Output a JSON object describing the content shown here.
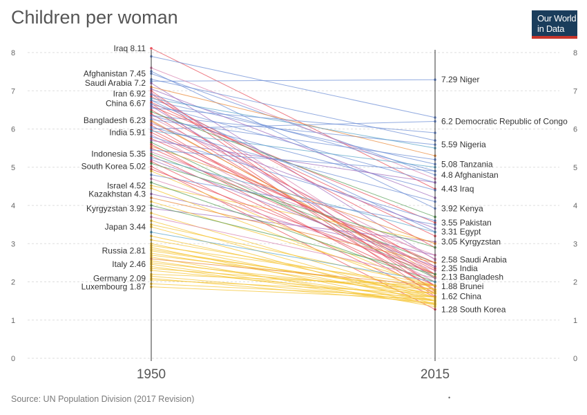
{
  "title": "Children per woman",
  "logo": {
    "line1": "Our World",
    "line2": "in Data"
  },
  "source": "Source: UN Population Division (2017 Revision)",
  "footer_dot": "•",
  "colors": {
    "axis": "#333333",
    "grid": "#dddddd",
    "text": "#333333",
    "logo_bg": "#1a3d5c",
    "logo_bar": "#c8352b",
    "palette": [
      "#6d8fd6",
      "#e8505b",
      "#f6c431",
      "#a16fbf",
      "#5aa05a",
      "#e98a3a",
      "#5aa6c9",
      "#d883b0",
      "#9a7b56",
      "#8fbf6a"
    ]
  },
  "chart_data": {
    "type": "line",
    "subtype": "slope",
    "title": "Children per woman",
    "x": [
      "1950",
      "2015"
    ],
    "ylim": [
      0,
      8
    ],
    "yticks": [
      0,
      1,
      2,
      3,
      4,
      5,
      6,
      7,
      8
    ],
    "grid": true,
    "labeled_left": [
      {
        "name": "Iraq",
        "value": 8.11
      },
      {
        "name": "Afghanistan",
        "value": 7.45
      },
      {
        "name": "Saudi Arabia",
        "value": 7.2
      },
      {
        "name": "Iran",
        "value": 6.92
      },
      {
        "name": "China",
        "value": 6.67
      },
      {
        "name": "Bangladesh",
        "value": 6.23
      },
      {
        "name": "India",
        "value": 5.91
      },
      {
        "name": "Indonesia",
        "value": 5.35
      },
      {
        "name": "South Korea",
        "value": 5.02
      },
      {
        "name": "Israel",
        "value": 4.52
      },
      {
        "name": "Kazakhstan",
        "value": 4.3
      },
      {
        "name": "Kyrgyzstan",
        "value": 3.92
      },
      {
        "name": "Japan",
        "value": 3.44
      },
      {
        "name": "Russia",
        "value": 2.81
      },
      {
        "name": "Italy",
        "value": 2.46
      },
      {
        "name": "Germany",
        "value": 2.09
      },
      {
        "name": "Luxembourg",
        "value": 1.87
      }
    ],
    "labeled_right": [
      {
        "name": "Niger",
        "value": 7.29
      },
      {
        "name": "Democratic Republic of Congo",
        "value": 6.2
      },
      {
        "name": "Nigeria",
        "value": 5.59
      },
      {
        "name": "Tanzania",
        "value": 5.08
      },
      {
        "name": "Afghanistan",
        "value": 4.8
      },
      {
        "name": "Iraq",
        "value": 4.43
      },
      {
        "name": "Kenya",
        "value": 3.92
      },
      {
        "name": "Pakistan",
        "value": 3.55
      },
      {
        "name": "Egypt",
        "value": 3.31
      },
      {
        "name": "Kyrgyzstan",
        "value": 3.05
      },
      {
        "name": "Saudi Arabia",
        "value": 2.58
      },
      {
        "name": "India",
        "value": 2.35
      },
      {
        "name": "Bangladesh",
        "value": 2.13
      },
      {
        "name": "Brunei",
        "value": 1.88
      },
      {
        "name": "China",
        "value": 1.62
      },
      {
        "name": "South Korea",
        "value": 1.28
      }
    ],
    "series": [
      {
        "name": "Iraq",
        "values": [
          8.11,
          4.43
        ],
        "color": "#e8505b"
      },
      {
        "name": "Afghanistan",
        "values": [
          7.45,
          4.8
        ],
        "color": "#6d8fd6"
      },
      {
        "name": "Saudi Arabia",
        "values": [
          7.2,
          2.58
        ],
        "color": "#a16fbf"
      },
      {
        "name": "Iran",
        "values": [
          6.92,
          1.75
        ],
        "color": "#e8505b"
      },
      {
        "name": "China",
        "values": [
          6.67,
          1.62
        ],
        "color": "#e8505b"
      },
      {
        "name": "Bangladesh",
        "values": [
          6.23,
          2.13
        ],
        "color": "#e98a3a"
      },
      {
        "name": "India",
        "values": [
          5.91,
          2.35
        ],
        "color": "#e8505b"
      },
      {
        "name": "Indonesia",
        "values": [
          5.35,
          2.5
        ],
        "color": "#5aa05a"
      },
      {
        "name": "South Korea",
        "values": [
          5.02,
          1.28
        ],
        "color": "#e8505b"
      },
      {
        "name": "Israel",
        "values": [
          4.52,
          3.04
        ],
        "color": "#f6c431"
      },
      {
        "name": "Kazakhstan",
        "values": [
          4.3,
          2.7
        ],
        "color": "#a16fbf"
      },
      {
        "name": "Kyrgyzstan",
        "values": [
          3.92,
          3.05
        ],
        "color": "#a16fbf"
      },
      {
        "name": "Japan",
        "values": [
          3.44,
          1.42
        ],
        "color": "#f6c431"
      },
      {
        "name": "Russia",
        "values": [
          2.81,
          1.75
        ],
        "color": "#f6c431"
      },
      {
        "name": "Italy",
        "values": [
          2.46,
          1.43
        ],
        "color": "#f6c431"
      },
      {
        "name": "Germany",
        "values": [
          2.09,
          1.45
        ],
        "color": "#f6c431"
      },
      {
        "name": "Luxembourg",
        "values": [
          1.87,
          1.55
        ],
        "color": "#f6c431"
      },
      {
        "name": "Niger",
        "values": [
          7.25,
          7.29
        ],
        "color": "#6d8fd6"
      },
      {
        "name": "Democratic Republic of Congo",
        "values": [
          6.0,
          6.2
        ],
        "color": "#6d8fd6"
      },
      {
        "name": "Nigeria",
        "values": [
          6.35,
          5.59
        ],
        "color": "#6d8fd6"
      },
      {
        "name": "Tanzania",
        "values": [
          6.75,
          5.08
        ],
        "color": "#6d8fd6"
      },
      {
        "name": "Kenya",
        "values": [
          7.51,
          3.92
        ],
        "color": "#6d8fd6"
      },
      {
        "name": "Pakistan",
        "values": [
          6.6,
          3.55
        ],
        "color": "#e8505b"
      },
      {
        "name": "Egypt",
        "values": [
          6.75,
          3.31
        ],
        "color": "#6d8fd6"
      },
      {
        "name": "Brunei",
        "values": [
          7.0,
          1.88
        ],
        "color": "#e8505b"
      },
      {
        "name": "",
        "values": [
          7.9,
          6.3
        ],
        "color": "#6d8fd6"
      },
      {
        "name": "",
        "values": [
          7.6,
          4.7
        ],
        "color": "#d883b0"
      },
      {
        "name": "",
        "values": [
          7.3,
          5.7
        ],
        "color": "#6d8fd6"
      },
      {
        "name": "",
        "values": [
          7.1,
          5.3
        ],
        "color": "#e98a3a"
      },
      {
        "name": "",
        "values": [
          7.05,
          4.2
        ],
        "color": "#a16fbf"
      },
      {
        "name": "",
        "values": [
          6.95,
          2.2
        ],
        "color": "#d883b0"
      },
      {
        "name": "",
        "values": [
          6.9,
          4.9
        ],
        "color": "#6d8fd6"
      },
      {
        "name": "",
        "values": [
          6.85,
          2.9
        ],
        "color": "#e8505b"
      },
      {
        "name": "",
        "values": [
          6.8,
          5.5
        ],
        "color": "#5aa6c9"
      },
      {
        "name": "",
        "values": [
          6.7,
          3.2
        ],
        "color": "#e8505b"
      },
      {
        "name": "",
        "values": [
          6.65,
          4.6
        ],
        "color": "#6d8fd6"
      },
      {
        "name": "",
        "values": [
          6.6,
          2.1
        ],
        "color": "#a16fbf"
      },
      {
        "name": "",
        "values": [
          6.55,
          5.9
        ],
        "color": "#6d8fd6"
      },
      {
        "name": "",
        "values": [
          6.5,
          2.4
        ],
        "color": "#e8505b"
      },
      {
        "name": "",
        "values": [
          6.45,
          3.7
        ],
        "color": "#5aa05a"
      },
      {
        "name": "",
        "values": [
          6.4,
          1.9
        ],
        "color": "#e8505b"
      },
      {
        "name": "",
        "values": [
          6.35,
          4.4
        ],
        "color": "#6d8fd6"
      },
      {
        "name": "",
        "values": [
          6.3,
          2.6
        ],
        "color": "#d883b0"
      },
      {
        "name": "",
        "values": [
          6.25,
          5.2
        ],
        "color": "#6d8fd6"
      },
      {
        "name": "",
        "values": [
          6.2,
          2.2
        ],
        "color": "#e98a3a"
      },
      {
        "name": "",
        "values": [
          6.15,
          3.4
        ],
        "color": "#a16fbf"
      },
      {
        "name": "",
        "values": [
          6.1,
          1.8
        ],
        "color": "#e8505b"
      },
      {
        "name": "",
        "values": [
          6.05,
          4.1
        ],
        "color": "#6d8fd6"
      },
      {
        "name": "",
        "values": [
          5.98,
          2.3
        ],
        "color": "#e8505b"
      },
      {
        "name": "",
        "values": [
          5.95,
          5.0
        ],
        "color": "#5aa6c9"
      },
      {
        "name": "",
        "values": [
          5.85,
          2.0
        ],
        "color": "#d883b0"
      },
      {
        "name": "",
        "values": [
          5.8,
          3.6
        ],
        "color": "#6d8fd6"
      },
      {
        "name": "",
        "values": [
          5.75,
          2.5
        ],
        "color": "#e8505b"
      },
      {
        "name": "",
        "values": [
          5.7,
          4.6
        ],
        "color": "#a16fbf"
      },
      {
        "name": "",
        "values": [
          5.65,
          2.1
        ],
        "color": "#5aa05a"
      },
      {
        "name": "",
        "values": [
          5.6,
          1.7
        ],
        "color": "#e8505b"
      },
      {
        "name": "",
        "values": [
          5.55,
          3.0
        ],
        "color": "#e98a3a"
      },
      {
        "name": "",
        "values": [
          5.5,
          2.2
        ],
        "color": "#e8505b"
      },
      {
        "name": "",
        "values": [
          5.45,
          4.9
        ],
        "color": "#6d8fd6"
      },
      {
        "name": "",
        "values": [
          5.4,
          2.7
        ],
        "color": "#d883b0"
      },
      {
        "name": "",
        "values": [
          5.3,
          1.9
        ],
        "color": "#e8505b"
      },
      {
        "name": "",
        "values": [
          5.25,
          3.3
        ],
        "color": "#5aa6c9"
      },
      {
        "name": "",
        "values": [
          5.2,
          2.4
        ],
        "color": "#a16fbf"
      },
      {
        "name": "",
        "values": [
          5.15,
          1.6
        ],
        "color": "#e8505b"
      },
      {
        "name": "",
        "values": [
          5.1,
          2.9
        ],
        "color": "#5aa05a"
      },
      {
        "name": "",
        "values": [
          4.95,
          2.2
        ],
        "color": "#e8505b"
      },
      {
        "name": "",
        "values": [
          4.9,
          1.8
        ],
        "color": "#f6c431"
      },
      {
        "name": "",
        "values": [
          4.8,
          3.5
        ],
        "color": "#6d8fd6"
      },
      {
        "name": "",
        "values": [
          4.7,
          2.3
        ],
        "color": "#d883b0"
      },
      {
        "name": "",
        "values": [
          4.6,
          2.0
        ],
        "color": "#5aa05a"
      },
      {
        "name": "",
        "values": [
          4.45,
          1.7
        ],
        "color": "#f6c431"
      },
      {
        "name": "",
        "values": [
          4.2,
          2.5
        ],
        "color": "#e98a3a"
      },
      {
        "name": "",
        "values": [
          4.1,
          1.9
        ],
        "color": "#f6c431"
      },
      {
        "name": "",
        "values": [
          4.0,
          2.2
        ],
        "color": "#5aa05a"
      },
      {
        "name": "",
        "values": [
          3.8,
          1.6
        ],
        "color": "#f6c431"
      },
      {
        "name": "",
        "values": [
          3.7,
          2.1
        ],
        "color": "#d883b0"
      },
      {
        "name": "",
        "values": [
          3.6,
          1.5
        ],
        "color": "#f6c431"
      },
      {
        "name": "",
        "values": [
          3.5,
          1.9
        ],
        "color": "#f6c431"
      },
      {
        "name": "",
        "values": [
          3.3,
          2.0
        ],
        "color": "#5aa6c9"
      },
      {
        "name": "",
        "values": [
          3.2,
          1.6
        ],
        "color": "#f6c431"
      },
      {
        "name": "",
        "values": [
          3.1,
          1.8
        ],
        "color": "#f6c431"
      },
      {
        "name": "",
        "values": [
          3.0,
          1.5
        ],
        "color": "#f6c431"
      },
      {
        "name": "",
        "values": [
          2.95,
          1.9
        ],
        "color": "#f6c431"
      },
      {
        "name": "",
        "values": [
          2.9,
          1.4
        ],
        "color": "#f6c431"
      },
      {
        "name": "",
        "values": [
          2.85,
          1.7
        ],
        "color": "#f6c431"
      },
      {
        "name": "",
        "values": [
          2.75,
          1.6
        ],
        "color": "#f6c431"
      },
      {
        "name": "",
        "values": [
          2.7,
          1.8
        ],
        "color": "#f6c431"
      },
      {
        "name": "",
        "values": [
          2.65,
          1.35
        ],
        "color": "#f6c431"
      },
      {
        "name": "",
        "values": [
          2.6,
          1.9
        ],
        "color": "#e98a3a"
      },
      {
        "name": "",
        "values": [
          2.55,
          1.5
        ],
        "color": "#f6c431"
      },
      {
        "name": "",
        "values": [
          2.5,
          1.7
        ],
        "color": "#f6c431"
      },
      {
        "name": "",
        "values": [
          2.4,
          1.4
        ],
        "color": "#f6c431"
      },
      {
        "name": "",
        "values": [
          2.35,
          1.8
        ],
        "color": "#f6c431"
      },
      {
        "name": "",
        "values": [
          2.3,
          1.6
        ],
        "color": "#f6c431"
      },
      {
        "name": "",
        "values": [
          2.2,
          1.9
        ],
        "color": "#f6c431"
      },
      {
        "name": "",
        "values": [
          2.15,
          1.5
        ],
        "color": "#f6c431"
      },
      {
        "name": "",
        "values": [
          2.05,
          1.7
        ],
        "color": "#f6c431"
      },
      {
        "name": "",
        "values": [
          1.95,
          1.6
        ],
        "color": "#f6c431"
      }
    ]
  }
}
